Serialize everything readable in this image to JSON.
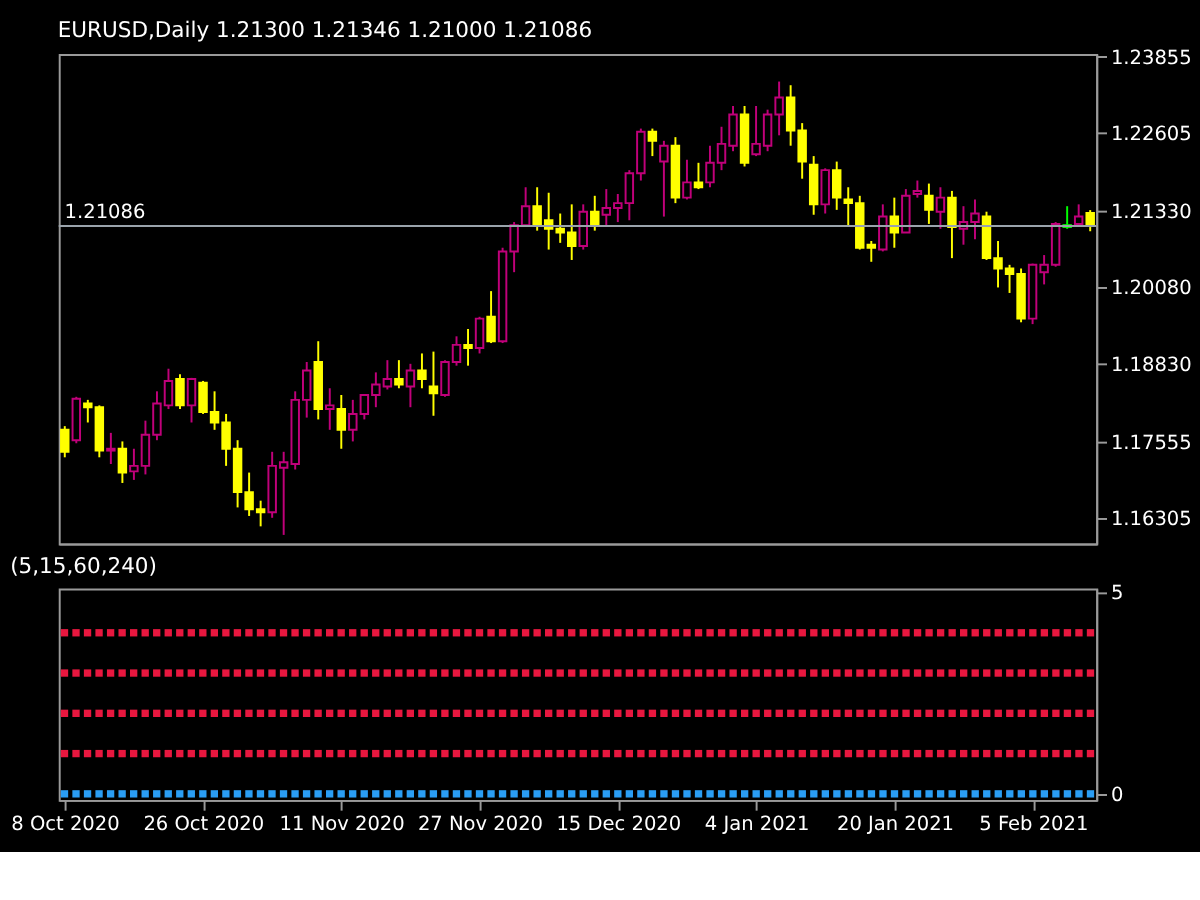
{
  "chart_data": [
    {
      "type": "candlestick",
      "title": "EURUSD,Daily  1.21300 1.21346 1.21000 1.21086",
      "tick_labels": "y",
      "categories": [
        null,
        null,
        null,
        null,
        null,
        null,
        null,
        null,
        null,
        null,
        null,
        null,
        null,
        null,
        null,
        null,
        null,
        null,
        null,
        null,
        null,
        null,
        null,
        null,
        null,
        null,
        null,
        null,
        null,
        null,
        null,
        null,
        null,
        null,
        null,
        null,
        null,
        null,
        null,
        null,
        null,
        null,
        null,
        null,
        null,
        null,
        null,
        null,
        null,
        null,
        null,
        null,
        null,
        null,
        null,
        null,
        null,
        null,
        null,
        null,
        null,
        null,
        null,
        null,
        null,
        null,
        null,
        null,
        null,
        null,
        null,
        null,
        null,
        null,
        null,
        null,
        null,
        null,
        null,
        null,
        null,
        null,
        null,
        null,
        null,
        null,
        null,
        null,
        null,
        null
      ],
      "ohlc": [
        [
          1.1775,
          1.1781,
          1.173,
          1.1739
        ],
        [
          1.1758,
          1.1829,
          1.1753,
          1.1826
        ],
        [
          1.1818,
          1.1824,
          1.1787,
          1.1812
        ],
        [
          1.1812,
          1.1815,
          1.173,
          1.1741
        ],
        [
          1.1741,
          1.177,
          1.1719,
          1.1744
        ],
        [
          1.1744,
          1.1756,
          1.1688,
          1.1705
        ],
        [
          1.1707,
          1.1744,
          1.1693,
          1.1716
        ],
        [
          1.1716,
          1.179,
          1.1702,
          1.1767
        ],
        [
          1.1767,
          1.1838,
          1.1758,
          1.1818
        ],
        [
          1.1815,
          1.1875,
          1.1809,
          1.1855
        ],
        [
          1.1858,
          1.1866,
          1.1809,
          1.1815
        ],
        [
          1.1815,
          1.186,
          1.1787,
          1.1858
        ],
        [
          1.1852,
          1.1855,
          1.1801,
          1.1804
        ],
        [
          1.1804,
          1.1838,
          1.1775,
          1.1787
        ],
        [
          1.1787,
          1.1801,
          1.1716,
          1.1744
        ],
        [
          1.1744,
          1.1758,
          1.1648,
          1.1673
        ],
        [
          1.1673,
          1.1705,
          1.1634,
          1.1645
        ],
        [
          1.1645,
          1.1659,
          1.1617,
          1.164
        ],
        [
          1.164,
          1.1739,
          1.1631,
          1.1716
        ],
        [
          1.1713,
          1.1739,
          1.1603,
          1.1722
        ],
        [
          1.1719,
          1.1838,
          1.171,
          1.1824
        ],
        [
          1.1824,
          1.1886,
          1.1795,
          1.1872
        ],
        [
          1.1886,
          1.192,
          1.1792,
          1.1809
        ],
        [
          1.1809,
          1.1843,
          1.1775,
          1.1815
        ],
        [
          1.1809,
          1.1832,
          1.1744,
          1.1775
        ],
        [
          1.1775,
          1.1824,
          1.1756,
          1.1801
        ],
        [
          1.1801,
          1.1832,
          1.1792,
          1.1832
        ],
        [
          1.1832,
          1.1869,
          1.1812,
          1.1849
        ],
        [
          1.1846,
          1.1889,
          1.1841,
          1.1858
        ],
        [
          1.1858,
          1.1889,
          1.1843,
          1.1849
        ],
        [
          1.1846,
          1.1883,
          1.1812,
          1.1872
        ],
        [
          1.1872,
          1.19,
          1.1843,
          1.1858
        ],
        [
          1.1846,
          1.1903,
          1.1798,
          1.1835
        ],
        [
          1.1832,
          1.1889,
          1.1829,
          1.1886
        ],
        [
          1.1886,
          1.1928,
          1.188,
          1.1914
        ],
        [
          1.1914,
          1.194,
          1.188,
          1.1909
        ],
        [
          1.1909,
          1.196,
          1.19,
          1.1957
        ],
        [
          1.196,
          1.2002,
          1.1917,
          1.192
        ],
        [
          1.192,
          1.2073,
          1.1917,
          1.2067
        ],
        [
          1.2067,
          1.2115,
          1.2033,
          1.211
        ],
        [
          1.211,
          1.2172,
          1.2107,
          1.2141
        ],
        [
          1.2141,
          1.2172,
          1.2101,
          1.2112
        ],
        [
          1.2118,
          1.2163,
          1.207,
          1.2104
        ],
        [
          1.2104,
          1.2129,
          1.2081,
          1.2098
        ],
        [
          1.2098,
          1.2144,
          1.2053,
          1.2076
        ],
        [
          1.2076,
          1.2144,
          1.207,
          1.2132
        ],
        [
          1.2132,
          1.2158,
          1.2101,
          1.211
        ],
        [
          1.2127,
          1.2169,
          1.211,
          1.2138
        ],
        [
          1.2138,
          1.2161,
          1.2115,
          1.2146
        ],
        [
          1.2146,
          1.22,
          1.2118,
          1.2195
        ],
        [
          1.2195,
          1.2268,
          1.2183,
          1.2263
        ],
        [
          1.2263,
          1.2268,
          1.2223,
          1.2248
        ],
        [
          1.2214,
          1.2248,
          1.2124,
          1.224
        ],
        [
          1.224,
          1.2254,
          1.2146,
          1.2155
        ],
        [
          1.2155,
          1.2217,
          1.2152,
          1.218
        ],
        [
          1.218,
          1.2212,
          1.2169,
          1.2172
        ],
        [
          1.218,
          1.224,
          1.2172,
          1.2212
        ],
        [
          1.2212,
          1.2271,
          1.22,
          1.2243
        ],
        [
          1.224,
          1.2305,
          1.2231,
          1.2291
        ],
        [
          1.2291,
          1.2305,
          1.2206,
          1.2212
        ],
        [
          1.2226,
          1.2305,
          1.2223,
          1.2243
        ],
        [
          1.224,
          1.2299,
          1.2231,
          1.2291
        ],
        [
          1.2291,
          1.2345,
          1.2257,
          1.2319
        ],
        [
          1.2319,
          1.2339,
          1.224,
          1.2265
        ],
        [
          1.2265,
          1.2277,
          1.2186,
          1.2214
        ],
        [
          1.2209,
          1.2223,
          1.2127,
          1.2144
        ],
        [
          1.2144,
          1.2203,
          1.2129,
          1.22
        ],
        [
          1.22,
          1.2214,
          1.2135,
          1.2155
        ],
        [
          1.2152,
          1.2172,
          1.2107,
          1.2146
        ],
        [
          1.2146,
          1.2158,
          1.207,
          1.2073
        ],
        [
          1.2078,
          1.2084,
          1.205,
          1.2073
        ],
        [
          1.207,
          1.2144,
          1.2067,
          1.2124
        ],
        [
          1.2124,
          1.2155,
          1.2073,
          1.2098
        ],
        [
          1.2098,
          1.2169,
          1.2098,
          1.2158
        ],
        [
          1.2161,
          1.2183,
          1.2155,
          1.2166
        ],
        [
          1.2158,
          1.2178,
          1.2112,
          1.2135
        ],
        [
          1.2132,
          1.2172,
          1.2104,
          1.2155
        ],
        [
          1.2155,
          1.2166,
          1.2056,
          1.2107
        ],
        [
          1.2104,
          1.2141,
          1.2078,
          1.2115
        ],
        [
          1.2115,
          1.2152,
          1.2087,
          1.2129
        ],
        [
          1.2124,
          1.2132,
          1.2053,
          1.2056
        ],
        [
          1.2056,
          1.2084,
          1.2008,
          1.2039
        ],
        [
          1.2039,
          1.2045,
          1.1999,
          1.203
        ],
        [
          1.203,
          1.2039,
          1.1951,
          1.1957
        ],
        [
          1.1957,
          1.2047,
          1.1948,
          1.2045
        ],
        [
          1.2033,
          1.2061,
          1.2013,
          1.2045
        ],
        [
          1.2045,
          1.2115,
          1.2042,
          1.2112
        ],
        [
          1.2107,
          1.2141,
          1.2104,
          1.211
        ],
        [
          1.2112,
          1.2144,
          1.211,
          1.2124
        ],
        [
          1.213,
          1.21346,
          1.21,
          1.21086
        ]
      ],
      "colors": [
        "#ffff00",
        "#c0007a",
        "#ffff00",
        "#ffff00",
        "#c0007a",
        "#ffff00",
        "#c0007a",
        "#c0007a",
        "#c0007a",
        "#c0007a",
        "#ffff00",
        "#c0007a",
        "#ffff00",
        "#ffff00",
        "#ffff00",
        "#ffff00",
        "#ffff00",
        "#ffff00",
        "#c0007a",
        "#c0007a",
        "#c0007a",
        "#c0007a",
        "#ffff00",
        "#c0007a",
        "#ffff00",
        "#c0007a",
        "#c0007a",
        "#c0007a",
        "#c0007a",
        "#ffff00",
        "#c0007a",
        "#ffff00",
        "#ffff00",
        "#c0007a",
        "#c0007a",
        "#ffff00",
        "#c0007a",
        "#ffff00",
        "#c0007a",
        "#c0007a",
        "#c0007a",
        "#ffff00",
        "#ffff00",
        "#ffff00",
        "#ffff00",
        "#c0007a",
        "#ffff00",
        "#c0007a",
        "#c0007a",
        "#c0007a",
        "#c0007a",
        "#ffff00",
        "#c0007a",
        "#ffff00",
        "#c0007a",
        "#ffff00",
        "#c0007a",
        "#c0007a",
        "#c0007a",
        "#ffff00",
        "#c0007a",
        "#c0007a",
        "#c0007a",
        "#ffff00",
        "#ffff00",
        "#ffff00",
        "#c0007a",
        "#ffff00",
        "#ffff00",
        "#ffff00",
        "#ffff00",
        "#c0007a",
        "#ffff00",
        "#c0007a",
        "#c0007a",
        "#ffff00",
        "#c0007a",
        "#ffff00",
        "#c0007a",
        "#c0007a",
        "#ffff00",
        "#ffff00",
        "#ffff00",
        "#ffff00",
        "#c0007a",
        "#c0007a",
        "#c0007a",
        "#00ff00",
        "#c0007a",
        "#ffff00"
      ],
      "ylim": [
        1.1589,
        1.239
      ],
      "yticks": [
        1.23855,
        1.22605,
        {
          "value": 1.2133,
          "label": "1.21330"
        },
        {
          "value": 1.2008,
          "label": "1.20080"
        },
        {
          "value": 1.1883,
          "label": "1.18830"
        },
        1.17555,
        1.16305
      ],
      "ref_lines": [
        {
          "axis": "y",
          "value": 1.21086,
          "label": "1.21086",
          "color": "#9aa3ab"
        }
      ]
    },
    {
      "type": "scatter",
      "title": "(5,15,60,240)",
      "marker": "square",
      "categories": [
        "8 Oct 2020",
        null,
        null,
        null,
        null,
        null,
        null,
        null,
        null,
        null,
        null,
        null,
        "26 Oct 2020",
        null,
        null,
        null,
        null,
        null,
        null,
        null,
        null,
        null,
        null,
        null,
        "11 Nov 2020",
        null,
        null,
        null,
        null,
        null,
        null,
        null,
        null,
        null,
        null,
        null,
        "27 Nov 2020",
        null,
        null,
        null,
        null,
        null,
        null,
        null,
        null,
        null,
        null,
        null,
        "15 Dec 2020",
        null,
        null,
        null,
        null,
        null,
        null,
        null,
        null,
        null,
        null,
        null,
        "4 Jan 2021",
        null,
        null,
        null,
        null,
        null,
        null,
        null,
        null,
        null,
        null,
        null,
        "20 Jan 2021",
        null,
        null,
        null,
        null,
        null,
        null,
        null,
        null,
        null,
        null,
        null,
        "5 Feb 2021",
        null,
        null,
        null,
        null,
        null
      ],
      "series": [
        {
          "color": "#e8173f",
          "values": [
            4,
            4,
            4,
            4,
            4,
            4,
            4,
            4,
            4,
            4,
            4,
            4,
            4,
            4,
            4,
            4,
            4,
            4,
            4,
            4,
            4,
            4,
            4,
            4,
            4,
            4,
            4,
            4,
            4,
            4,
            4,
            4,
            4,
            4,
            4,
            4,
            4,
            4,
            4,
            4,
            4,
            4,
            4,
            4,
            4,
            4,
            4,
            4,
            4,
            4,
            4,
            4,
            4,
            4,
            4,
            4,
            4,
            4,
            4,
            4,
            4,
            4,
            4,
            4,
            4,
            4,
            4,
            4,
            4,
            4,
            4,
            4,
            4,
            4,
            4,
            4,
            4,
            4,
            4,
            4,
            4,
            4,
            4,
            4,
            4,
            4,
            4,
            4,
            4,
            4
          ]
        },
        {
          "color": "#e8173f",
          "values": [
            3,
            3,
            3,
            3,
            3,
            3,
            3,
            3,
            3,
            3,
            3,
            3,
            3,
            3,
            3,
            3,
            3,
            3,
            3,
            3,
            3,
            3,
            3,
            3,
            3,
            3,
            3,
            3,
            3,
            3,
            3,
            3,
            3,
            3,
            3,
            3,
            3,
            3,
            3,
            3,
            3,
            3,
            3,
            3,
            3,
            3,
            3,
            3,
            3,
            3,
            3,
            3,
            3,
            3,
            3,
            3,
            3,
            3,
            3,
            3,
            3,
            3,
            3,
            3,
            3,
            3,
            3,
            3,
            3,
            3,
            3,
            3,
            3,
            3,
            3,
            3,
            3,
            3,
            3,
            3,
            3,
            3,
            3,
            3,
            3,
            3,
            3,
            3,
            3,
            3
          ]
        },
        {
          "color": "#e8173f",
          "values": [
            2,
            2,
            2,
            2,
            2,
            2,
            2,
            2,
            2,
            2,
            2,
            2,
            2,
            2,
            2,
            2,
            2,
            2,
            2,
            2,
            2,
            2,
            2,
            2,
            2,
            2,
            2,
            2,
            2,
            2,
            2,
            2,
            2,
            2,
            2,
            2,
            2,
            2,
            2,
            2,
            2,
            2,
            2,
            2,
            2,
            2,
            2,
            2,
            2,
            2,
            2,
            2,
            2,
            2,
            2,
            2,
            2,
            2,
            2,
            2,
            2,
            2,
            2,
            2,
            2,
            2,
            2,
            2,
            2,
            2,
            2,
            2,
            2,
            2,
            2,
            2,
            2,
            2,
            2,
            2,
            2,
            2,
            2,
            2,
            2,
            2,
            2,
            2,
            2,
            2
          ]
        },
        {
          "color": "#e8173f",
          "values": [
            1,
            1,
            1,
            1,
            1,
            1,
            1,
            1,
            1,
            1,
            1,
            1,
            1,
            1,
            1,
            1,
            1,
            1,
            1,
            1,
            1,
            1,
            1,
            1,
            1,
            1,
            1,
            1,
            1,
            1,
            1,
            1,
            1,
            1,
            1,
            1,
            1,
            1,
            1,
            1,
            1,
            1,
            1,
            1,
            1,
            1,
            1,
            1,
            1,
            1,
            1,
            1,
            1,
            1,
            1,
            1,
            1,
            1,
            1,
            1,
            1,
            1,
            1,
            1,
            1,
            1,
            1,
            1,
            1,
            1,
            1,
            1,
            1,
            1,
            1,
            1,
            1,
            1,
            1,
            1,
            1,
            1,
            1,
            1,
            1,
            1,
            1,
            1,
            1,
            1
          ]
        },
        {
          "color": "#2a9df4",
          "values": [
            0,
            0,
            0,
            0,
            0,
            0,
            0,
            0,
            0,
            0,
            0,
            0,
            0,
            0,
            0,
            0,
            0,
            0,
            0,
            0,
            0,
            0,
            0,
            0,
            0,
            0,
            0,
            0,
            0,
            0,
            0,
            0,
            0,
            0,
            0,
            0,
            0,
            0,
            0,
            0,
            0,
            0,
            0,
            0,
            0,
            0,
            0,
            0,
            0,
            0,
            0,
            0,
            0,
            0,
            0,
            0,
            0,
            0,
            0,
            0,
            0,
            0,
            0,
            0,
            0,
            0,
            0,
            0,
            0,
            0,
            0,
            0,
            0,
            0,
            0,
            0,
            0,
            0,
            0,
            0,
            0,
            0,
            0,
            0,
            0,
            0,
            0,
            0,
            0,
            0
          ]
        }
      ],
      "ylim": [
        -0.15,
        5.1
      ],
      "yticks": [
        0,
        5
      ]
    }
  ]
}
